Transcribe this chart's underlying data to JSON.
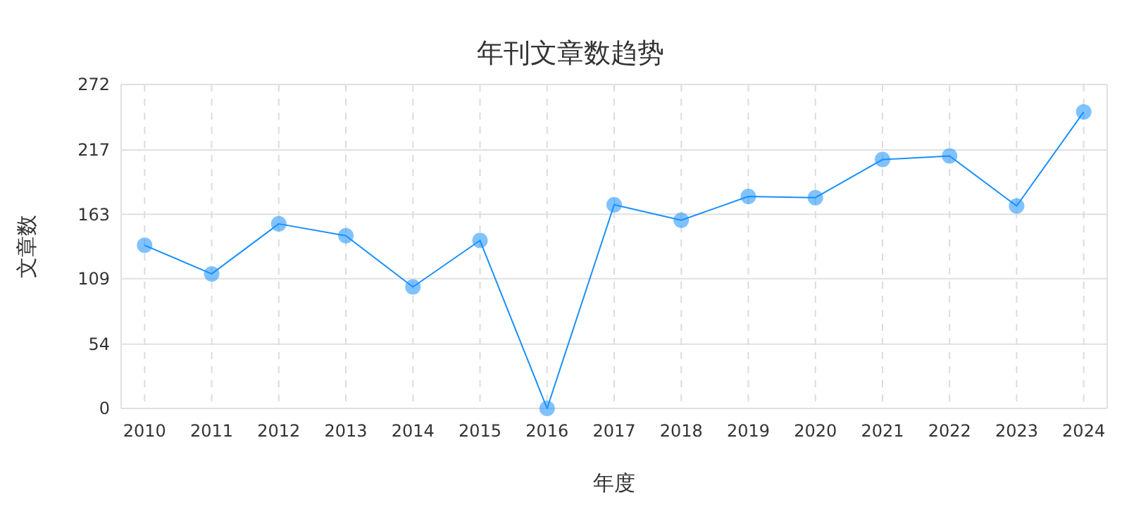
{
  "chart_data": {
    "type": "line",
    "title": "年刊文章数趋势",
    "xlabel": "年度",
    "ylabel": "文章数",
    "categories": [
      "2010",
      "2011",
      "2012",
      "2013",
      "2014",
      "2015",
      "2016",
      "2017",
      "2018",
      "2019",
      "2020",
      "2021",
      "2022",
      "2023",
      "2024"
    ],
    "series": [
      {
        "color": "#1890ff",
        "values": [
          137,
          113,
          155,
          145,
          102,
          141,
          0,
          171,
          158,
          178,
          177,
          209,
          212,
          170,
          249
        ]
      }
    ],
    "ylim": [
      0,
      272
    ],
    "yticks": [
      0,
      54,
      109,
      163,
      217,
      272
    ],
    "grid": true,
    "marker": "circle",
    "line_style": "solid"
  }
}
